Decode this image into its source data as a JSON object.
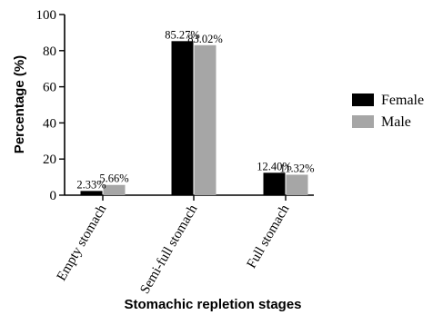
{
  "chart_data": {
    "type": "bar",
    "categories": [
      "Empty stomach",
      "Semi-full stomach",
      "Full stomach"
    ],
    "series": [
      {
        "name": "Female",
        "color": "#000000",
        "values": [
          2.33,
          85.27,
          12.4
        ],
        "labels": [
          "2.33%",
          "85.27%",
          "12.40%"
        ]
      },
      {
        "name": "Male",
        "color": "#a6a6a6",
        "values": [
          5.66,
          83.02,
          11.32
        ],
        "labels": [
          "5.66%",
          "83.02%",
          "11.32%"
        ]
      }
    ],
    "xlabel": "Stomachic repletion stages",
    "ylabel": "Percentage (%)",
    "ylim": [
      0,
      100
    ],
    "yticks": [
      0,
      20,
      40,
      60,
      80,
      100
    ],
    "grid": false,
    "legend_position": "right"
  }
}
